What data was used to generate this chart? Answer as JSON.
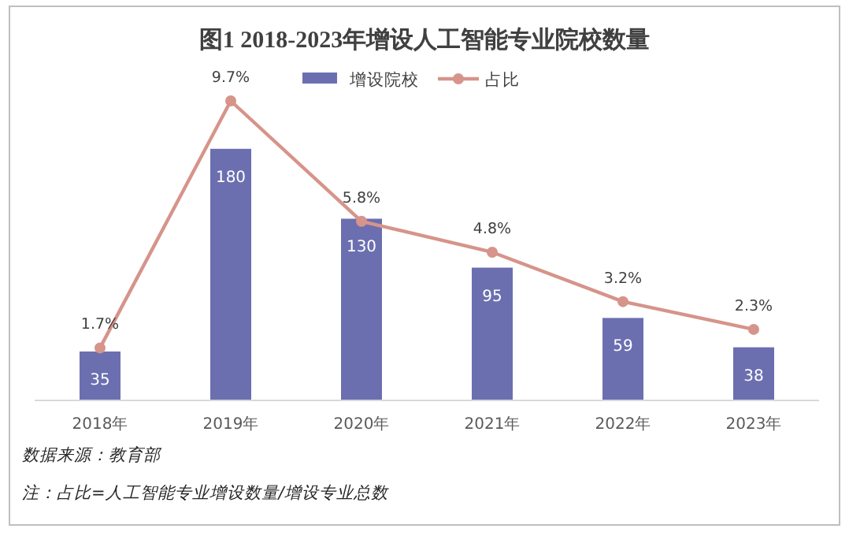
{
  "chart_data": {
    "type": "bar",
    "title": "图1 2018-2023年增设人工智能专业院校数量",
    "categories": [
      "2018年",
      "2019年",
      "2020年",
      "2021年",
      "2022年",
      "2023年"
    ],
    "series": [
      {
        "name": "增设院校",
        "color": "#6b6fb0",
        "values": [
          35,
          180,
          130,
          95,
          59,
          38
        ],
        "value_labels": [
          "35",
          "180",
          "130",
          "95",
          "59",
          "38"
        ]
      },
      {
        "name": "占比",
        "type": "line",
        "axis": "y2",
        "color": "#d6948a",
        "marker": "circle",
        "values": [
          1.7,
          9.7,
          5.8,
          4.8,
          3.2,
          2.3
        ],
        "value_labels": [
          "1.7%",
          "9.7%",
          "5.8%",
          "4.8%",
          "3.2%",
          "2.3%"
        ]
      }
    ],
    "legend": "top",
    "annotations": [
      "数据来源：教育部",
      "注：占比=人工智能专业增设数量/增设专业总数"
    ]
  }
}
